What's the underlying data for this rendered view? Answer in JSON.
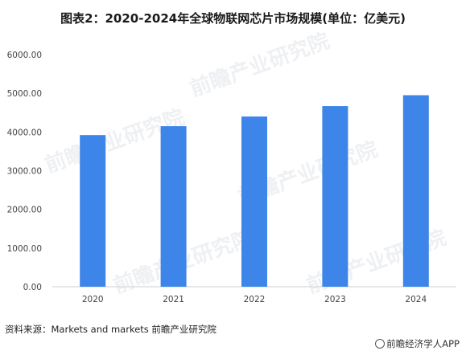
{
  "chart_data": {
    "type": "bar",
    "title": "图表2：2020-2024年全球物联网芯片市场规模(单位：亿美元)",
    "categories": [
      "2020",
      "2021",
      "2022",
      "2023",
      "2024"
    ],
    "values": [
      3920,
      4150,
      4400,
      4670,
      4950
    ],
    "ylim": [
      0,
      6000
    ],
    "yticks": [
      "0.00",
      "1000.00",
      "2000.00",
      "3000.00",
      "4000.00",
      "5000.00",
      "6000.00"
    ],
    "bar_color": "#3d85e8",
    "grid": false,
    "legend": "none"
  },
  "footer": {
    "source": "资料来源：Markets and markets 前瞻产业研究院",
    "brand": "前瞻经济学人APP"
  },
  "watermark": {
    "text": "前瞻产业研究院"
  }
}
